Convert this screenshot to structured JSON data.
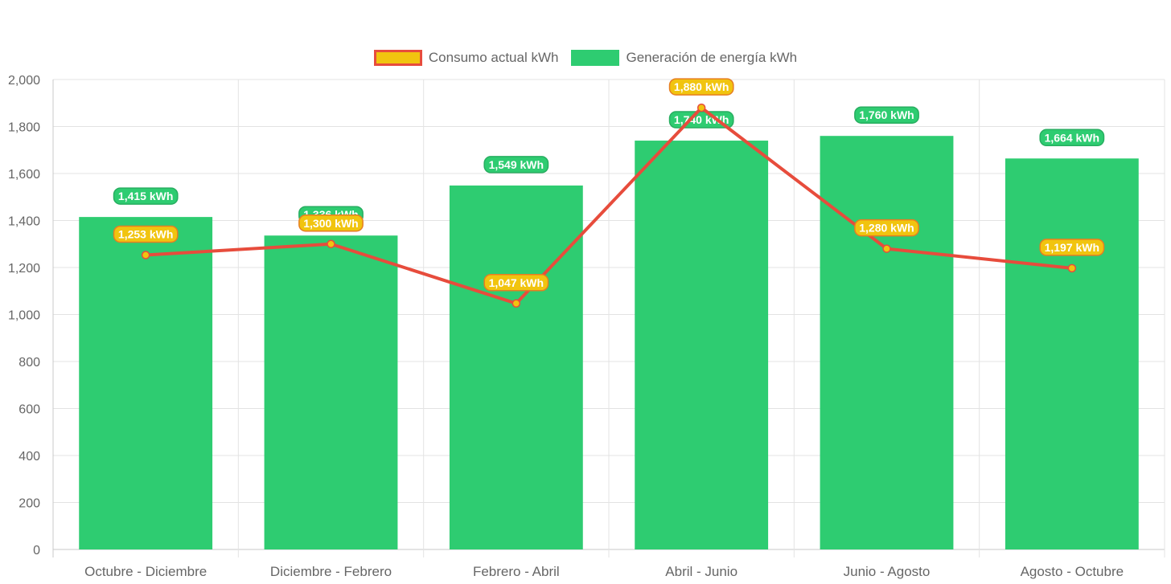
{
  "chart_data": {
    "type": "bar",
    "title": "",
    "xlabel": "",
    "ylabel": "",
    "ylim": [
      0,
      2000
    ],
    "ytick_step": 200,
    "ytick_labels": [
      "0",
      "200",
      "400",
      "600",
      "800",
      "1,000",
      "1,200",
      "1,400",
      "1,600",
      "1,800",
      "2,000"
    ],
    "grid": true,
    "legend_position": "top",
    "categories": [
      "Octubre - Diciembre",
      "Diciembre - Febrero",
      "Febrero - Abril",
      "Abril - Junio",
      "Junio - Agosto",
      "Agosto - Octubre"
    ],
    "series": [
      {
        "name": "Consumo actual kWh",
        "type": "line",
        "values": [
          1253,
          1300,
          1047,
          1880,
          1280,
          1197
        ],
        "labels": [
          "1,253 kWh",
          "1,300 kWh",
          "1,047 kWh",
          "1,880 kWh",
          "1,280 kWh",
          "1,197 kWh"
        ],
        "color": "#e74c3c",
        "fill": "#f1c40f"
      },
      {
        "name": "Generación de energía kWh",
        "type": "bar",
        "values": [
          1415,
          1336,
          1549,
          1740,
          1760,
          1664
        ],
        "labels": [
          "1,415 kWh",
          "1,336 kWh",
          "1,549 kWh",
          "1,740 kWh",
          "1,760 kWh",
          "1,664 kWh"
        ],
        "color": "#2ecc71",
        "fill": "#2ecc71"
      }
    ]
  }
}
